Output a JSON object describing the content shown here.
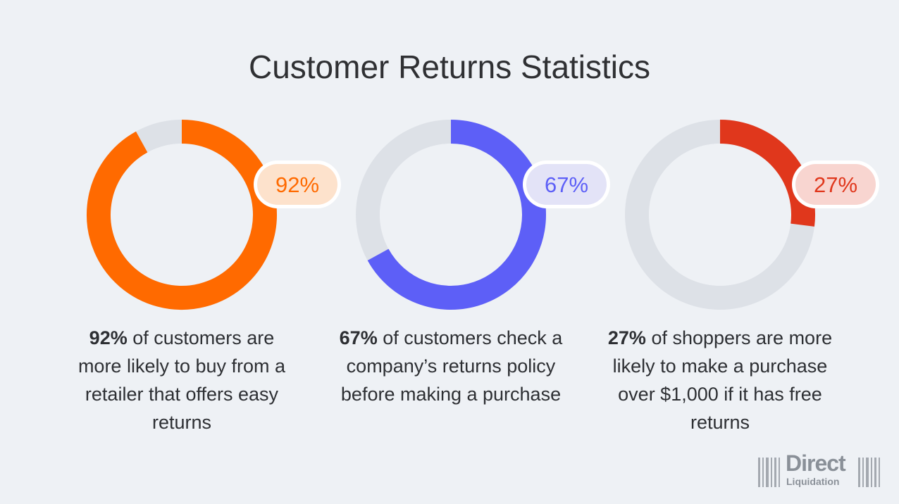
{
  "title": "Customer Returns Statistics",
  "chart_data": [
    {
      "type": "donut",
      "values": [
        92
      ],
      "value_labels": [
        "92%"
      ],
      "color": "#ff6a00",
      "caption_lead": "92%",
      "caption": "of customers are more likely to buy from a retailer that offers easy returns"
    },
    {
      "type": "donut",
      "values": [
        67
      ],
      "value_labels": [
        "67%"
      ],
      "color": "#5d5ff7",
      "caption_lead": "67%",
      "caption": "of customers check a company’s returns policy before making a purchase"
    },
    {
      "type": "donut",
      "values": [
        27
      ],
      "value_labels": [
        "27%"
      ],
      "color": "#e0371c",
      "caption_lead": "27%",
      "caption": "of shoppers are more likely to make a purchase over $1,000 if it has free returns"
    }
  ],
  "logo": {
    "line1": "Direct",
    "line2": "Liquidation"
  }
}
